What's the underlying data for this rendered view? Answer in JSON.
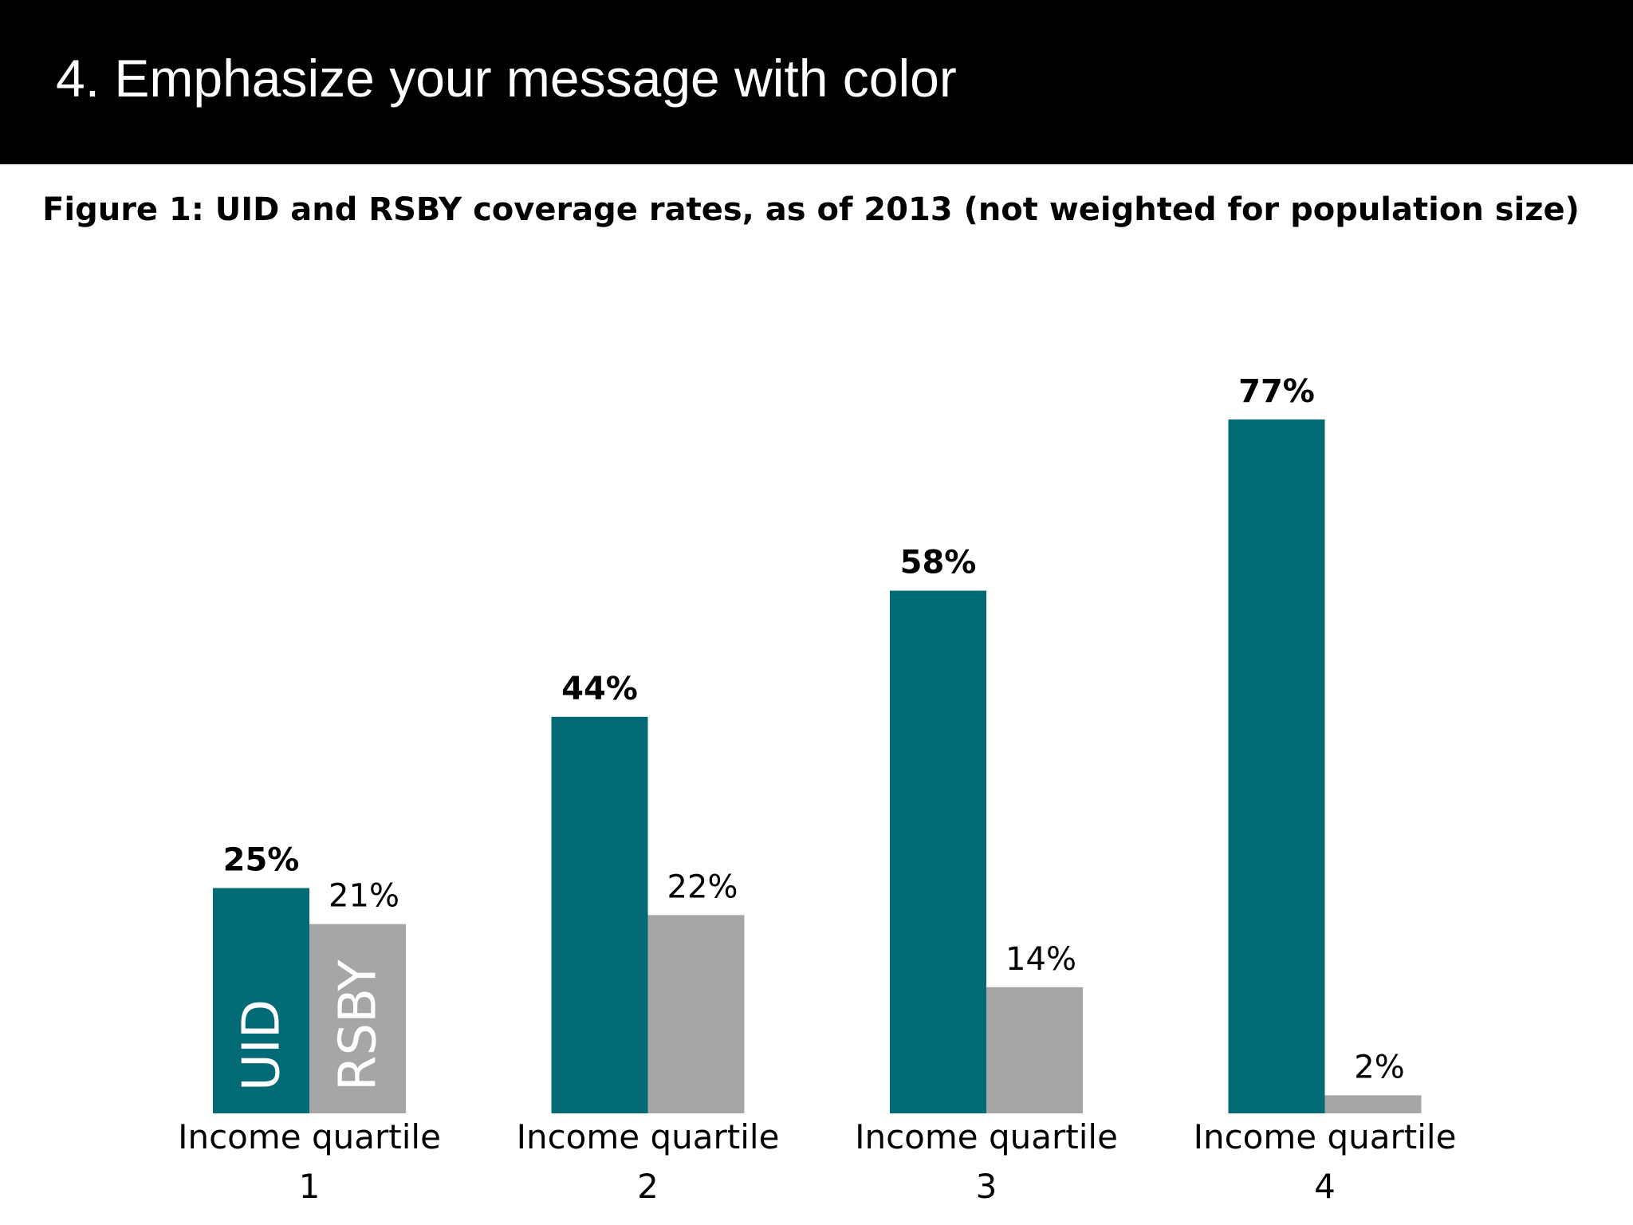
{
  "slide": {
    "title": "4. Emphasize your message with color"
  },
  "chart_data": {
    "type": "bar",
    "title": "Figure 1: UID and RSBY coverage rates, as of 2013 (not weighted for population size)",
    "categories": [
      [
        "Income quartile",
        "1"
      ],
      [
        "Income quartile",
        "2"
      ],
      [
        "Income quartile",
        "3"
      ],
      [
        "Income quartile",
        "4"
      ]
    ],
    "series": [
      {
        "name": "UID",
        "values": [
          25,
          44,
          58,
          77
        ],
        "color": "#026b75",
        "label_weight": "bold"
      },
      {
        "name": "RSBY",
        "values": [
          21,
          22,
          14,
          2
        ],
        "color": "#a6a6a6",
        "label_weight": "normal"
      }
    ],
    "value_suffix": "%",
    "xlabel": "",
    "ylabel": "",
    "ylim": [
      0,
      100
    ],
    "grid": false,
    "legend": "inside first bar pair"
  }
}
